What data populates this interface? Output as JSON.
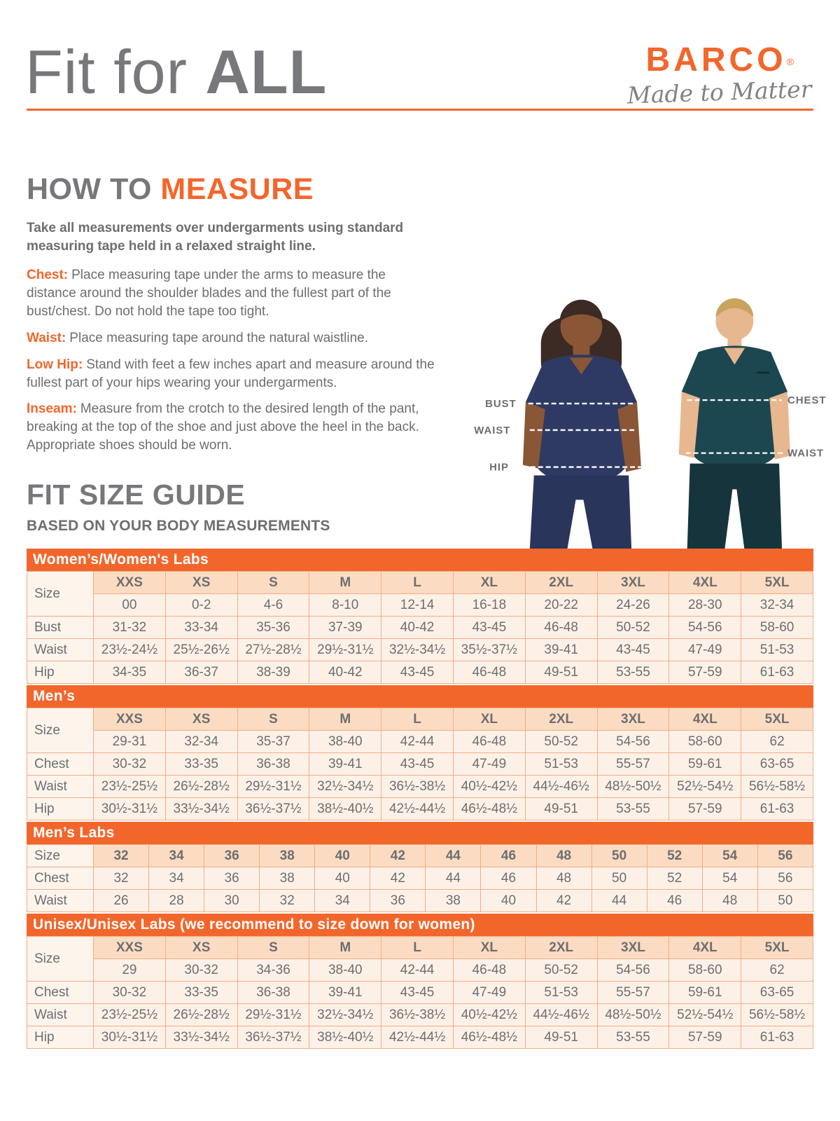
{
  "header": {
    "title_light": "Fit for ",
    "title_bold": "ALL",
    "brand": "BARCO",
    "brand_mark": "®",
    "tagline": "Made to Matter"
  },
  "how_to_measure": {
    "heading_part1": "HOW TO ",
    "heading_part2": "MEASURE",
    "intro": "Take all measurements over undergarments using standard measuring tape held in a relaxed straight line.",
    "items": [
      {
        "label": "Chest:",
        "text": "Place measuring tape under the arms to measure the distance around the shoulder blades and the fullest part of the bust/chest. Do not hold the tape too tight."
      },
      {
        "label": "Waist:",
        "text": "Place measuring tape around the natural waistline."
      },
      {
        "label": "Low Hip:",
        "text": "Stand with feet a few inches apart and measure around the fullest part of your hips wearing your undergarments."
      },
      {
        "label": "Inseam:",
        "text": "Measure from the crotch to the desired length of the pant, breaking at the top of the shoe and just above the heel in the back. Appropriate shoes should be worn."
      }
    ]
  },
  "photo": {
    "labels": {
      "bust": "BUST",
      "waist_left": "WAIST",
      "hip": "HIP",
      "chest": "CHEST",
      "waist_right": "WAIST"
    }
  },
  "size_guide": {
    "heading": "FIT SIZE GUIDE",
    "subheading": "BASED ON YOUR BODY MEASUREMENTS",
    "corner_label": "Size",
    "tables": [
      {
        "key": "womens",
        "title": "Women’s/Women's Labs",
        "size_labels": [
          "XXS",
          "XS",
          "S",
          "M",
          "L",
          "XL",
          "2XL",
          "3XL",
          "4XL",
          "5XL"
        ],
        "size_numbers": [
          "00",
          "0-2",
          "4-6",
          "8-10",
          "12-14",
          "16-18",
          "20-22",
          "24-26",
          "28-30",
          "32-34"
        ],
        "rows": [
          {
            "label": "Bust",
            "values": [
              "31-32",
              "33-34",
              "35-36",
              "37-39",
              "40-42",
              "43-45",
              "46-48",
              "50-52",
              "54-56",
              "58-60"
            ]
          },
          {
            "label": "Waist",
            "values": [
              "23½-24½",
              "25½-26½",
              "27½-28½",
              "29½-31½",
              "32½-34½",
              "35½-37½",
              "39-41",
              "43-45",
              "47-49",
              "51-53"
            ]
          },
          {
            "label": "Hip",
            "values": [
              "34-35",
              "36-37",
              "38-39",
              "40-42",
              "43-45",
              "46-48",
              "49-51",
              "53-55",
              "57-59",
              "61-63"
            ]
          }
        ]
      },
      {
        "key": "mens",
        "title": "Men’s",
        "size_labels": [
          "XXS",
          "XS",
          "S",
          "M",
          "L",
          "XL",
          "2XL",
          "3XL",
          "4XL",
          "5XL"
        ],
        "size_numbers": [
          "29-31",
          "32-34",
          "35-37",
          "38-40",
          "42-44",
          "46-48",
          "50-52",
          "54-56",
          "58-60",
          "62"
        ],
        "rows": [
          {
            "label": "Chest",
            "values": [
              "30-32",
              "33-35",
              "36-38",
              "39-41",
              "43-45",
              "47-49",
              "51-53",
              "55-57",
              "59-61",
              "63-65"
            ]
          },
          {
            "label": "Waist",
            "values": [
              "23½-25½",
              "26½-28½",
              "29½-31½",
              "32½-34½",
              "36½-38½",
              "40½-42½",
              "44½-46½",
              "48½-50½",
              "52½-54½",
              "56½-58½"
            ]
          },
          {
            "label": "Hip",
            "values": [
              "30½-31½",
              "33½-34½",
              "36½-37½",
              "38½-40½",
              "42½-44½",
              "46½-48½",
              "49-51",
              "53-55",
              "57-59",
              "61-63"
            ]
          }
        ]
      },
      {
        "key": "mens-labs",
        "title": "Men’s Labs",
        "size_labels": [
          "32",
          "34",
          "36",
          "38",
          "40",
          "42",
          "44",
          "46",
          "48",
          "50",
          "52",
          "54",
          "56"
        ],
        "size_numbers": null,
        "rows": [
          {
            "label": "Chest",
            "values": [
              "32",
              "34",
              "36",
              "38",
              "40",
              "42",
              "44",
              "46",
              "48",
              "50",
              "52",
              "54",
              "56"
            ]
          },
          {
            "label": "Waist",
            "values": [
              "26",
              "28",
              "30",
              "32",
              "34",
              "36",
              "38",
              "40",
              "42",
              "44",
              "46",
              "48",
              "50"
            ]
          }
        ]
      },
      {
        "key": "unisex",
        "title": "Unisex/Unisex Labs (we recommend to size down for women)",
        "size_labels": [
          "XXS",
          "XS",
          "S",
          "M",
          "L",
          "XL",
          "2XL",
          "3XL",
          "4XL",
          "5XL"
        ],
        "size_numbers": [
          "29",
          "30-32",
          "34-36",
          "38-40",
          "42-44",
          "46-48",
          "50-52",
          "54-56",
          "58-60",
          "62"
        ],
        "rows": [
          {
            "label": "Chest",
            "values": [
              "30-32",
              "33-35",
              "36-38",
              "39-41",
              "43-45",
              "47-49",
              "51-53",
              "55-57",
              "59-61",
              "63-65"
            ]
          },
          {
            "label": "Waist",
            "values": [
              "23½-25½",
              "26½-28½",
              "29½-31½",
              "32½-34½",
              "36½-38½",
              "40½-42½",
              "44½-46½",
              "48½-50½",
              "52½-54½",
              "56½-58½"
            ]
          },
          {
            "label": "Hip",
            "values": [
              "30½-31½",
              "33½-34½",
              "36½-37½",
              "38½-40½",
              "42½-44½",
              "46½-48½",
              "49-51",
              "53-55",
              "57-59",
              "61-63"
            ]
          }
        ]
      }
    ]
  },
  "colors": {
    "accent_orange": "#F2662C",
    "heading_gray": "#77787B",
    "body_gray": "#6D6E71",
    "table_header_bg": "#FBDCC2",
    "table_cell_bg": "#FDF1E7",
    "table_label_bg": "#FDF4EC",
    "table_border": "#F3AC85",
    "scrubs_navy": "#2E3A64",
    "scrubs_teal": "#1D4750"
  }
}
